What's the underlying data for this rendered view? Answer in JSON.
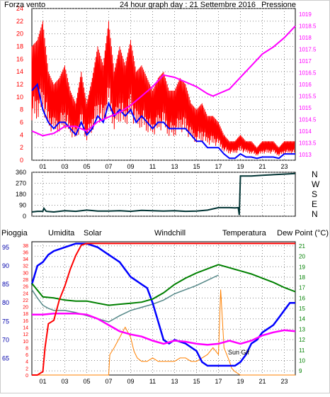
{
  "colors": {
    "wind": "#ff0000",
    "pressure": "#ff00ff",
    "gust_line": "#0000ff",
    "direction": "#003333",
    "rain": "#ff0000",
    "humidity": "#0000ff",
    "solar": "#ff8000",
    "windchill": "#558888",
    "temperature": "#008000",
    "dewpoint": "#ff00ff",
    "grid": "#888888",
    "text_blue": "#0000aa",
    "text_olive": "#808000",
    "text_teal": "#336666",
    "text_green": "#008000"
  },
  "chart_data": [
    {
      "type": "line",
      "title": "24 hour graph day : 21 Settembre 2016",
      "left_label": "Forza vento",
      "right_label": "Pressione",
      "x_ticks": [
        "01",
        "03",
        "05",
        "07",
        "09",
        "11",
        "13",
        "15",
        "17",
        "19",
        "21",
        "23"
      ],
      "x_range_hours": [
        0,
        24
      ],
      "y_left_range": [
        0,
        24
      ],
      "y_left_ticks": [
        0,
        2,
        4,
        6,
        8,
        10,
        12,
        14,
        16,
        18,
        20,
        22,
        24
      ],
      "y_right_range": [
        1012.75,
        1019.25
      ],
      "y_right_ticks": [
        1013,
        1013.5,
        1014,
        1014.5,
        1015,
        1015.5,
        1016,
        1016.5,
        1017,
        1017.5,
        1018,
        1018.5,
        1019
      ],
      "series": [
        {
          "name": "Forza vento",
          "axis": "left",
          "style": "gust",
          "x": [
            0,
            0.5,
            1,
            1.5,
            2,
            2.5,
            3,
            3.5,
            4,
            4.5,
            5,
            5.5,
            6,
            6.5,
            7,
            7.5,
            8,
            8.5,
            9,
            9.5,
            10,
            10.5,
            11,
            11.5,
            12,
            12.5,
            13,
            13.5,
            14,
            14.5,
            15,
            15.5,
            16,
            16.5,
            17,
            17.5,
            18,
            18.5,
            19,
            19.5,
            20,
            20.5,
            21,
            21.5,
            22,
            22.5,
            23,
            23.5,
            24
          ],
          "y": [
            18,
            19,
            22,
            14,
            12,
            13,
            15,
            11,
            9,
            14,
            9,
            13,
            18,
            15,
            22,
            14,
            18,
            15,
            19,
            14,
            15,
            13,
            11,
            13,
            14,
            11,
            11,
            13,
            12,
            9,
            8,
            9,
            7,
            7,
            6,
            4,
            3,
            3,
            4,
            3,
            3,
            2,
            3,
            3,
            3,
            2,
            3,
            3,
            3
          ]
        },
        {
          "axis": "left",
          "x": [
            0,
            0.5,
            1,
            1.5,
            2,
            2.5,
            3,
            3.5,
            4,
            4.5,
            5,
            5.5,
            6,
            6.5,
            7,
            7.5,
            8,
            8.5,
            9,
            9.5,
            10,
            10.5,
            11,
            11.5,
            12,
            12.5,
            13,
            13.5,
            14,
            14.5,
            15,
            15.5,
            16,
            16.5,
            17,
            17.5,
            18,
            18.5,
            19,
            19.5,
            20,
            20.5,
            21,
            21.5,
            22,
            22.5,
            23,
            23.5,
            24
          ],
          "y": [
            11,
            12,
            8,
            6,
            5,
            6,
            6,
            5,
            4,
            6,
            4,
            5,
            7,
            6,
            9,
            7,
            8,
            7,
            8,
            6,
            7,
            6,
            5,
            6,
            6,
            5,
            5,
            5,
            5,
            4,
            3,
            3,
            2,
            2,
            2,
            1,
            0.3,
            0.3,
            1,
            0.5,
            0.5,
            0.3,
            0.5,
            0.5,
            0.5,
            0.3,
            1,
            1,
            1
          ]
        },
        {
          "name": "Pressione",
          "axis": "right",
          "x": [
            0,
            1,
            2,
            3,
            4,
            5,
            6,
            7,
            8,
            9,
            10,
            11,
            12,
            13,
            14,
            15,
            16,
            16.5,
            17,
            18,
            19,
            20,
            21,
            22,
            23,
            24
          ],
          "y": [
            1014.0,
            1013.8,
            1013.9,
            1014.2,
            1014.2,
            1014.0,
            1014.4,
            1014.6,
            1014.8,
            1015.1,
            1015.5,
            1015.9,
            1016.4,
            1016.3,
            1016.1,
            1015.9,
            1015.6,
            1015.5,
            1015.6,
            1015.8,
            1016.3,
            1016.8,
            1017.3,
            1017.6,
            1018.0,
            1018.5
          ]
        }
      ]
    },
    {
      "type": "line",
      "x_range_hours": [
        0,
        24
      ],
      "y_range": [
        0,
        360
      ],
      "y_ticks": [
        0,
        90,
        180,
        270,
        360
      ],
      "right_labels": [
        "N",
        "W",
        "S",
        "E",
        "N"
      ],
      "series": [
        {
          "axis": "left",
          "x": [
            0,
            0.5,
            1,
            1.1,
            1.3,
            2,
            3,
            4,
            5,
            6,
            7,
            8,
            9,
            10,
            11,
            12,
            13,
            14,
            15,
            16,
            17,
            17.5,
            18,
            18.5,
            18.8,
            18.9,
            19,
            20,
            21,
            22,
            23,
            24
          ],
          "y": [
            35,
            40,
            40,
            65,
            40,
            35,
            45,
            40,
            50,
            42,
            42,
            45,
            40,
            48,
            45,
            42,
            45,
            40,
            42,
            50,
            70,
            70,
            70,
            68,
            70,
            10,
            330,
            330,
            335,
            340,
            345,
            350
          ]
        }
      ]
    },
    {
      "type": "line",
      "x_range_hours": [
        0,
        24
      ],
      "labels": {
        "rain": "Pioggia",
        "humidity": "Umidita",
        "solar": "Solar",
        "windchill": "Windchill",
        "temperature": "Temperatura",
        "dewpoint": "Dew Point (°C)"
      },
      "y_rain_ticks": [
        0,
        2,
        4,
        6,
        8,
        10,
        12,
        14,
        16,
        18,
        20,
        22,
        24,
        26,
        28,
        30,
        32,
        34,
        36,
        38
      ],
      "y_rain_range": [
        0,
        39
      ],
      "y_humidity_ticks": [
        65,
        70,
        75,
        80,
        85,
        90,
        95
      ],
      "y_humidity_range": [
        60.5,
        96.5
      ],
      "y_temp_ticks": [
        9,
        10,
        11,
        12,
        13,
        14,
        15,
        16,
        17,
        18,
        19,
        20,
        21
      ],
      "y_temp_range": [
        8.6,
        21.4
      ],
      "solar_label": "Sun Gif",
      "series": [
        {
          "name": "Pioggia",
          "axis": "rain",
          "x": [
            0,
            0.5,
            1,
            1.2,
            1.5,
            2,
            2.5,
            3,
            3.5,
            4,
            4.5,
            5,
            24
          ],
          "y": [
            0,
            0,
            1,
            8,
            15,
            16,
            22,
            26,
            31,
            35,
            38,
            38.5,
            38.5
          ]
        },
        {
          "name": "Umidita",
          "axis": "humidity",
          "x": [
            0,
            0.5,
            1,
            1.5,
            2,
            3,
            4,
            4.5,
            5,
            6,
            6.5,
            7,
            7.5,
            8,
            8.5,
            9,
            9.5,
            10,
            10.5,
            11,
            11.5,
            12,
            12.5,
            13,
            14,
            15,
            15.5,
            16,
            16.5,
            17,
            17.5,
            18,
            18.5,
            19,
            19.5,
            20,
            20.5,
            21,
            21.5,
            22,
            22.5,
            23,
            23.5,
            24
          ],
          "y": [
            85,
            90,
            91,
            93,
            94,
            95,
            96,
            96,
            96,
            95,
            94,
            93,
            92,
            91,
            89,
            87,
            86,
            85,
            84,
            80,
            75,
            70,
            69,
            70,
            69,
            67,
            64,
            63,
            63,
            63,
            63,
            63,
            63,
            64,
            66,
            69,
            70,
            72,
            73,
            74,
            76,
            78,
            80,
            80
          ]
        },
        {
          "name": "Solar",
          "axis": "rain",
          "x": [
            0,
            7,
            7.1,
            7.5,
            8,
            8.5,
            9,
            9.3,
            9.6,
            10,
            10.5,
            11,
            11.5,
            12,
            12.5,
            13,
            13.5,
            14,
            14.5,
            15,
            15.5,
            16,
            16.5,
            17,
            17.2,
            17.5,
            18,
            18.2,
            18.5,
            19,
            24
          ],
          "y": [
            0,
            0,
            6,
            8,
            11,
            14,
            11,
            7,
            5,
            4,
            4,
            5,
            4,
            4,
            4,
            4,
            5,
            5,
            4,
            4,
            5,
            6,
            8,
            6,
            25,
            8,
            4,
            2,
            1,
            0,
            0
          ]
        },
        {
          "name": "Windchill",
          "axis": "temp",
          "x": [
            0,
            0.5,
            1,
            1.5,
            2,
            3,
            4,
            5,
            6,
            7,
            8,
            9,
            10,
            11,
            12,
            13,
            14,
            15,
            16,
            17
          ],
          "y": [
            16.8,
            16,
            15.3,
            15,
            14.8,
            14.8,
            14.6,
            14.3,
            14,
            13.7,
            14.3,
            14.8,
            15.1,
            15.4,
            15.8,
            16.4,
            16.8,
            17.2,
            17.7,
            18.2
          ]
        },
        {
          "name": "Temperatura",
          "axis": "temp",
          "x": [
            0,
            1,
            2,
            3,
            4,
            5,
            6,
            7,
            8,
            9,
            10,
            11,
            12,
            13,
            14,
            15,
            16,
            17,
            18,
            19,
            20,
            21,
            22,
            23,
            24
          ],
          "y": [
            17.4,
            16.1,
            16,
            15.8,
            15.7,
            15.7,
            15.5,
            15.3,
            15.4,
            15.5,
            15.6,
            15.9,
            16.5,
            17.3,
            17.9,
            18.4,
            18.8,
            19.2,
            18.9,
            18.6,
            18.3,
            17.9,
            17.5,
            17,
            16.6
          ]
        },
        {
          "name": "Dew Point (°C)",
          "axis": "temp",
          "x": [
            0,
            1,
            2,
            3,
            4,
            5,
            6,
            7,
            8,
            9,
            10,
            11,
            12,
            13,
            14,
            15,
            16,
            17,
            18,
            19,
            20,
            21,
            22,
            23,
            24
          ],
          "y": [
            14.4,
            14.4,
            14.5,
            14.5,
            14.5,
            14.4,
            14,
            13.4,
            12.8,
            12.5,
            12.3,
            11.9,
            11.6,
            11.9,
            11.8,
            11.6,
            11.5,
            11.6,
            11.9,
            11.6,
            11.9,
            12.4,
            12.7,
            12.9,
            12.8
          ]
        }
      ]
    }
  ]
}
